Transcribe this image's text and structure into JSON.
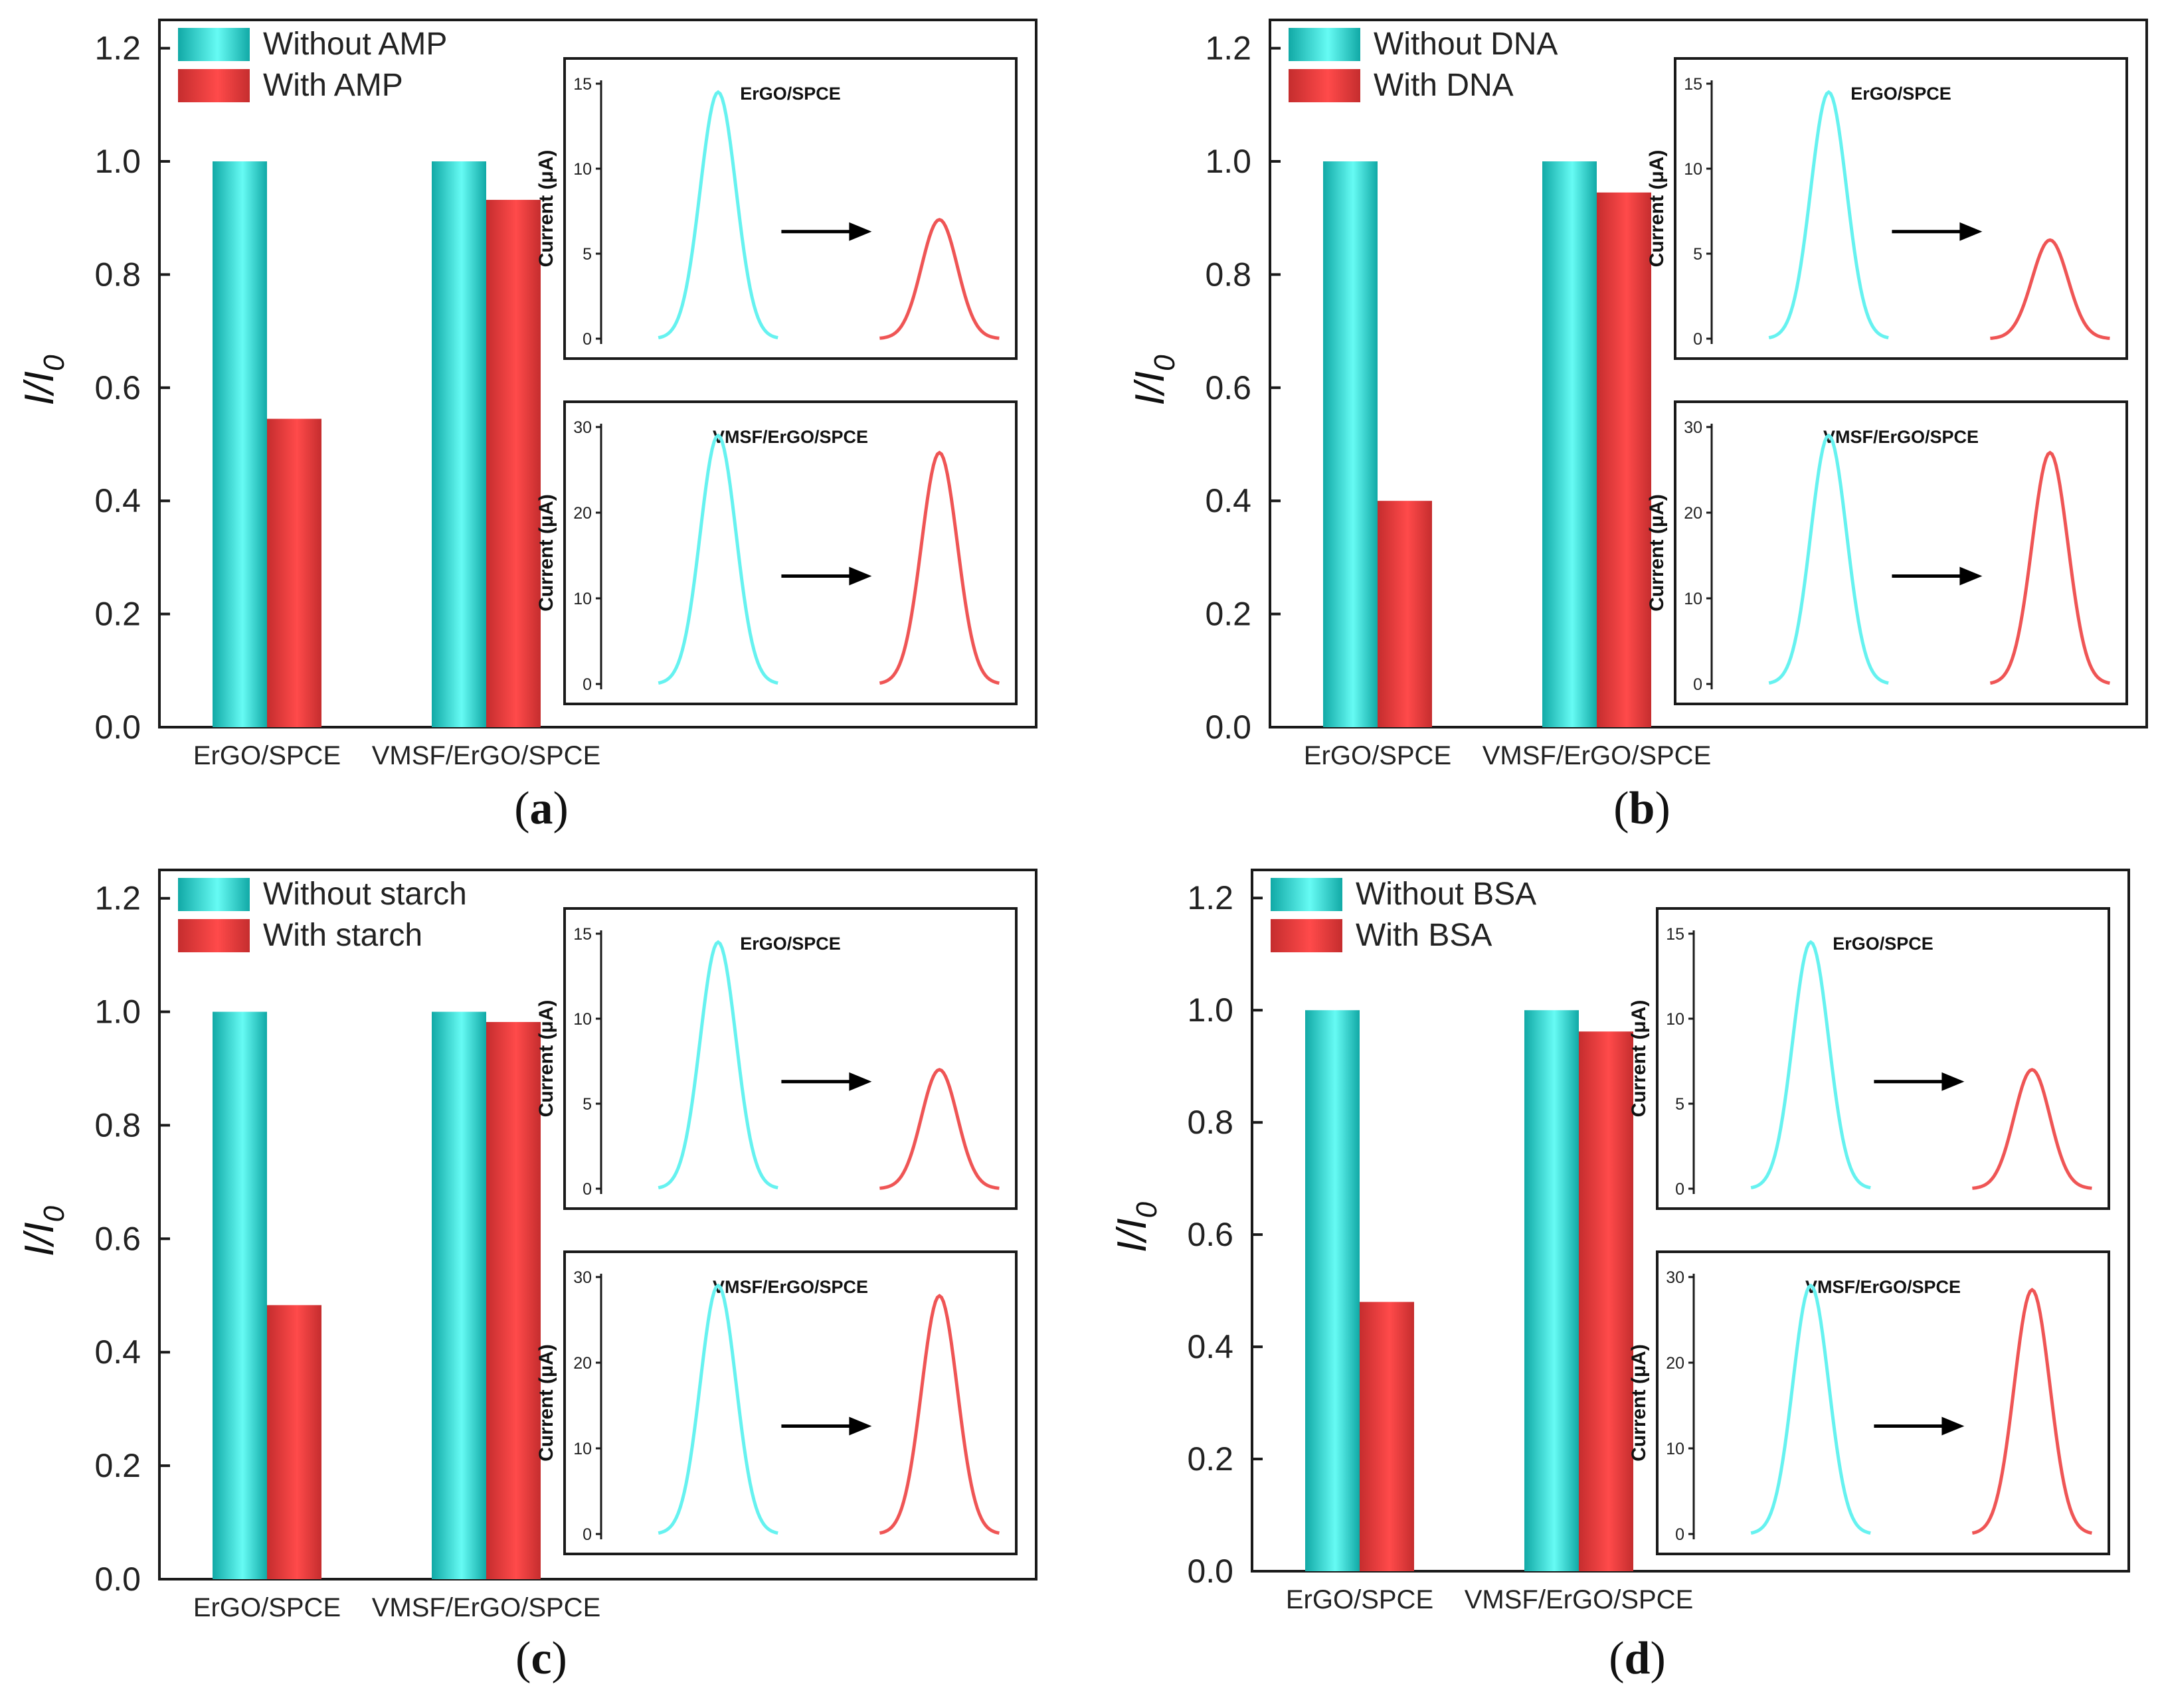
{
  "colors": {
    "teal_dark": "#11a9a6",
    "teal_light": "#66fbf4",
    "red_dark": "#c52d2e",
    "red_light": "#ff4a4a",
    "cyan_curve": "#66f2f0",
    "red_curve": "#ef5555",
    "frame": "#1a1a1a"
  },
  "chart_data": [
    {
      "type": "bar",
      "panel": "a",
      "panel_label": "(a)",
      "panel_letter": "a",
      "ylabel": "I/I0",
      "ylabel_main": "I/I",
      "ylabel_sub": "0",
      "ylim": [
        0,
        1.25
      ],
      "yticks": [
        "0.0",
        "0.2",
        "0.4",
        "0.6",
        "0.8",
        "1.0",
        "1.2"
      ],
      "categories": [
        "ErGO/SPCE",
        "VMSF/ErGO/SPCE"
      ],
      "series": [
        {
          "name": "Without AMP",
          "values": [
            1.0,
            1.0
          ]
        },
        {
          "name": "With AMP",
          "values": [
            0.545,
            0.932
          ]
        }
      ],
      "legend_position": "top-left",
      "insets": [
        {
          "title": "ErGO/SPCE",
          "ylabel": "Current (μA)",
          "ymax": 15,
          "yticks": [
            "0",
            "5",
            "10",
            "15"
          ],
          "peak_before": 14.5,
          "peak_after": 7.0
        },
        {
          "title": "VMSF/ErGO/SPCE",
          "ylabel": "Current (μA)",
          "ymax": 30,
          "yticks": [
            "0",
            "10",
            "20",
            "30"
          ],
          "peak_before": 29.0,
          "peak_after": 27.0
        }
      ]
    },
    {
      "type": "bar",
      "panel": "b",
      "panel_label": "(b)",
      "panel_letter": "b",
      "ylabel": "I/I0",
      "ylabel_main": "I/I",
      "ylabel_sub": "0",
      "ylim": [
        0,
        1.25
      ],
      "yticks": [
        "0.0",
        "0.2",
        "0.4",
        "0.6",
        "0.8",
        "1.0",
        "1.2"
      ],
      "categories": [
        "ErGO/SPCE",
        "VMSF/ErGO/SPCE"
      ],
      "series": [
        {
          "name": "Without DNA",
          "values": [
            1.0,
            1.0
          ]
        },
        {
          "name": "With DNA",
          "values": [
            0.4,
            0.945
          ]
        }
      ],
      "legend_position": "top-left",
      "insets": [
        {
          "title": "ErGO/SPCE",
          "ylabel": "Current (μA)",
          "ymax": 15,
          "yticks": [
            "0",
            "5",
            "10",
            "15"
          ],
          "peak_before": 14.5,
          "peak_after": 5.8
        },
        {
          "title": "VMSF/ErGO/SPCE",
          "ylabel": "Current (μA)",
          "ymax": 30,
          "yticks": [
            "0",
            "10",
            "20",
            "30"
          ],
          "peak_before": 29.0,
          "peak_after": 27.0
        }
      ]
    },
    {
      "type": "bar",
      "panel": "c",
      "panel_label": "(c)",
      "panel_letter": "c",
      "ylabel": "I/I0",
      "ylabel_main": "I/I",
      "ylabel_sub": "0",
      "ylim": [
        0,
        1.25
      ],
      "yticks": [
        "0.0",
        "0.2",
        "0.4",
        "0.6",
        "0.8",
        "1.0",
        "1.2"
      ],
      "categories": [
        "ErGO/SPCE",
        "VMSF/ErGO/SPCE"
      ],
      "series": [
        {
          "name": "Without starch",
          "values": [
            1.0,
            1.0
          ]
        },
        {
          "name": "With starch",
          "values": [
            0.483,
            0.982
          ]
        }
      ],
      "legend_position": "top-left",
      "insets": [
        {
          "title": "ErGO/SPCE",
          "ylabel": "Current (μA)",
          "ymax": 15,
          "yticks": [
            "0",
            "5",
            "10",
            "15"
          ],
          "peak_before": 14.5,
          "peak_after": 7.0
        },
        {
          "title": "VMSF/ErGO/SPCE",
          "ylabel": "Current (μA)",
          "ymax": 30,
          "yticks": [
            "0",
            "10",
            "20",
            "30"
          ],
          "peak_before": 29.0,
          "peak_after": 27.8
        }
      ]
    },
    {
      "type": "bar",
      "panel": "d",
      "panel_label": "(d)",
      "panel_letter": "d",
      "ylabel": "I/I0",
      "ylabel_main": "I/I",
      "ylabel_sub": "0",
      "ylim": [
        0,
        1.25
      ],
      "yticks": [
        "0.0",
        "0.2",
        "0.4",
        "0.6",
        "0.8",
        "1.0",
        "1.2"
      ],
      "categories": [
        "ErGO/SPCE",
        "VMSF/ErGO/SPCE"
      ],
      "series": [
        {
          "name": "Without BSA",
          "values": [
            1.0,
            1.0
          ]
        },
        {
          "name": "With BSA",
          "values": [
            0.48,
            0.962
          ]
        }
      ],
      "legend_position": "top-left",
      "insets": [
        {
          "title": "ErGO/SPCE",
          "ylabel": "Current (μA)",
          "ymax": 15,
          "yticks": [
            "0",
            "5",
            "10",
            "15"
          ],
          "peak_before": 14.5,
          "peak_after": 7.0
        },
        {
          "title": "VMSF/ErGO/SPCE",
          "ylabel": "Current (μA)",
          "ymax": 30,
          "yticks": [
            "0",
            "10",
            "20",
            "30"
          ],
          "peak_before": 29.0,
          "peak_after": 28.5
        }
      ]
    }
  ]
}
